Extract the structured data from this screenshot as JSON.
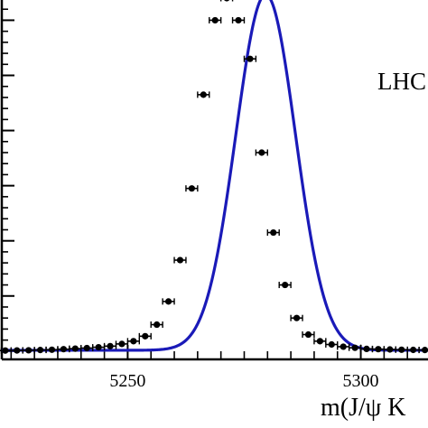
{
  "chart_data": {
    "type": "scatter",
    "annotation": "LHC",
    "xlabel": "m(J/ψ K",
    "xlim": [
      5223,
      5315
    ],
    "ylim": [
      -1.5,
      64
    ],
    "x_tick_labels": [
      "5250",
      "5300"
    ],
    "x_major_ticks": [
      5250,
      5300
    ],
    "y_major_ticks": [
      0,
      10,
      20,
      30,
      40,
      50,
      60
    ],
    "colors": {
      "fit": "#1a1ab8",
      "points": "#000000"
    },
    "series": [
      {
        "type": "points-with-errorbars",
        "x_halfwidth": 1.25,
        "x": [
          5223.75,
          5226.25,
          5228.75,
          5231.25,
          5233.75,
          5236.25,
          5238.75,
          5241.25,
          5243.75,
          5246.25,
          5248.75,
          5251.25,
          5253.75,
          5256.25,
          5258.75,
          5261.25,
          5263.75,
          5266.25,
          5268.75,
          5271.25,
          5273.75,
          5276.25,
          5278.75,
          5281.25,
          5283.75,
          5286.25,
          5288.75,
          5291.25,
          5293.75,
          5296.25,
          5298.75,
          5301.25,
          5303.75,
          5306.25,
          5308.75,
          5311.25,
          5313.75
        ],
        "y": [
          0.1,
          0.12,
          0.15,
          0.2,
          0.25,
          0.35,
          0.45,
          0.55,
          0.7,
          0.9,
          1.3,
          1.8,
          2.7,
          4.8,
          9.0,
          16.5,
          29.5,
          46.5,
          60.0,
          64.0,
          60.0,
          53.0,
          36.0,
          21.5,
          12.0,
          6.0,
          3.0,
          1.8,
          1.2,
          0.8,
          0.6,
          0.4,
          0.35,
          0.3,
          0.25,
          0.22,
          0.2
        ]
      },
      {
        "type": "fit-curve",
        "model": "gaussian-plus-constant",
        "mean": 5279.6,
        "sigma": 6.4,
        "amplitude": 64.5,
        "baseline": 0.15
      }
    ]
  }
}
